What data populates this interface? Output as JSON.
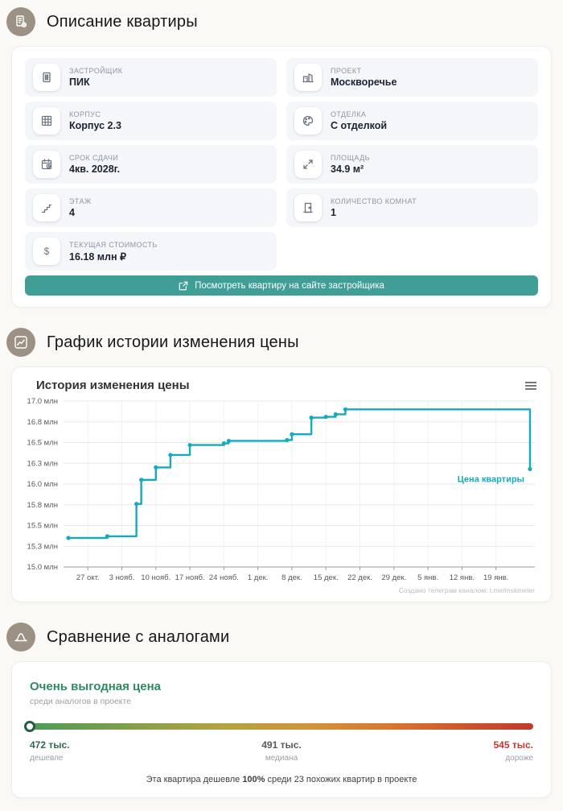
{
  "description": {
    "title": "Описание квартиры",
    "cards": [
      {
        "label": "ЗАСТРОЙЩИК",
        "value": "ПИК",
        "icon": "building-icon"
      },
      {
        "label": "ПРОЕКТ",
        "value": "Москворечье",
        "icon": "city-icon"
      },
      {
        "label": "КОРПУС",
        "value": "Корпус 2.3",
        "icon": "grid-icon"
      },
      {
        "label": "ОТДЕЛКА",
        "value": "С отделкой",
        "icon": "palette-icon"
      },
      {
        "label": "СРОК СДАЧИ",
        "value": "4кв. 2028г.",
        "icon": "calendar-icon"
      },
      {
        "label": "ПЛОЩАДЬ",
        "value": "34.9 м²",
        "icon": "expand-icon"
      },
      {
        "label": "ЭТАЖ",
        "value": "4",
        "icon": "stairs-icon"
      },
      {
        "label": "КОЛИЧЕСТВО КОМНАТ",
        "value": "1",
        "icon": "door-icon"
      },
      {
        "label": "ТЕКУЩАЯ СТОИМОСТЬ",
        "value": "16.18 млн ₽",
        "icon": "dollar-icon"
      }
    ],
    "cta_label": "Посмотреть квартиру на сайте застройщика",
    "cta_color": "#3f9f97"
  },
  "chart_section_title": "График истории изменения цены",
  "chart_data": {
    "type": "line",
    "step": true,
    "title": "История изменения цены",
    "xlim": [
      0,
      97
    ],
    "ylim": [
      15,
      17
    ],
    "grid": true,
    "x_ticks": [
      {
        "d": 5,
        "label": "27 окт."
      },
      {
        "d": 12,
        "label": "3 нояб."
      },
      {
        "d": 19,
        "label": "10 нояб."
      },
      {
        "d": 26,
        "label": "17 нояб."
      },
      {
        "d": 33,
        "label": "24 нояб."
      },
      {
        "d": 40,
        "label": "1 дек."
      },
      {
        "d": 47,
        "label": "8 дек."
      },
      {
        "d": 54,
        "label": "15 дек."
      },
      {
        "d": 61,
        "label": "22 дек."
      },
      {
        "d": 68,
        "label": "29 дек."
      },
      {
        "d": 75,
        "label": "5 янв."
      },
      {
        "d": 82,
        "label": "12 янв."
      },
      {
        "d": 89,
        "label": "19 янв."
      }
    ],
    "y_ticks": [
      {
        "v": 17.0,
        "label": "17.0 млн"
      },
      {
        "v": 16.75,
        "label": "16.8 млн"
      },
      {
        "v": 16.5,
        "label": "16.5 млн"
      },
      {
        "v": 16.25,
        "label": "16.3 млн"
      },
      {
        "v": 16.0,
        "label": "16.0 млн"
      },
      {
        "v": 15.75,
        "label": "15.8 млн"
      },
      {
        "v": 15.5,
        "label": "15.5 млн"
      },
      {
        "v": 15.25,
        "label": "15.3 млн"
      },
      {
        "v": 15.0,
        "label": "15.0 млн"
      }
    ],
    "series": [
      {
        "name": "Цена квартиры",
        "color": "#17a9bd",
        "points": [
          [
            1,
            15.35
          ],
          [
            9,
            15.37
          ],
          [
            15,
            15.76
          ],
          [
            16,
            16.05
          ],
          [
            19,
            16.2
          ],
          [
            22,
            16.35
          ],
          [
            26,
            16.47
          ],
          [
            33,
            16.49
          ],
          [
            34,
            16.52
          ],
          [
            46,
            16.53
          ],
          [
            47,
            16.6
          ],
          [
            51,
            16.8
          ],
          [
            54,
            16.81
          ],
          [
            56,
            16.84
          ],
          [
            58,
            16.9
          ],
          [
            96,
            16.18
          ]
        ]
      }
    ],
    "credit": "Создано телеграм каналом: t.me/mskmeter"
  },
  "comparison": {
    "title": "Сравнение с аналогами",
    "verdict": "Очень выгодная цена",
    "verdict_sub": "среди аналогов в проекте",
    "scale": {
      "min_label": "472 тыс.",
      "min_sub": "дешевле",
      "mid_label": "491 тыс.",
      "mid_sub": "медиана",
      "max_label": "545 тыс.",
      "max_sub": "дороже",
      "marker_pct": 0
    },
    "caption_1": "Эта квартира дешевле ",
    "caption_bold": "100%",
    "caption_2": " среди 23 похожих квартир в проекте"
  }
}
